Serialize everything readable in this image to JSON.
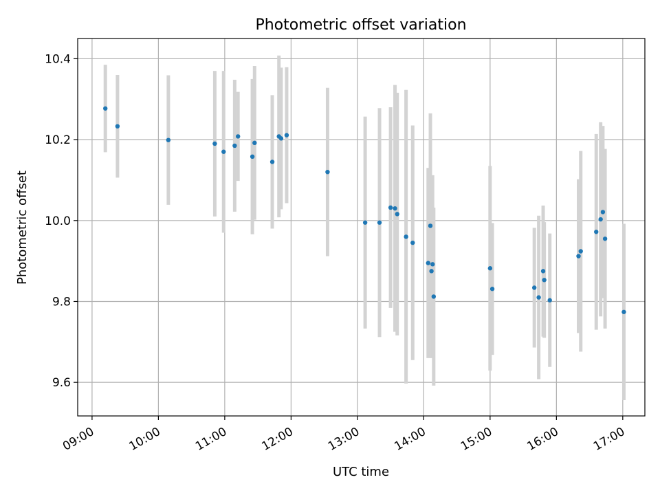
{
  "chart_data": {
    "type": "scatter",
    "title": "Photometric offset variation",
    "xlabel": "UTC time",
    "ylabel": "Photometric offset",
    "x_tick_labels": [
      "09:00",
      "10:00",
      "11:00",
      "12:00",
      "13:00",
      "14:00",
      "15:00",
      "16:00",
      "17:00"
    ],
    "y_ticks": [
      9.6,
      9.8,
      10.0,
      10.2,
      10.4
    ],
    "y_tick_labels": [
      "9.6",
      "9.8",
      "10.0",
      "10.2",
      "10.4"
    ],
    "xlim": [
      "08:47",
      "17:20"
    ],
    "ylim": [
      9.517,
      10.45
    ],
    "grid": true,
    "point_color": "#1f77b4",
    "errorbar_color": "#d3d3d3",
    "points": [
      {
        "x": "09:12",
        "y": 10.277,
        "err": 0.108
      },
      {
        "x": "09:23",
        "y": 10.233,
        "err": 0.127
      },
      {
        "x": "10:09",
        "y": 10.199,
        "err": 0.16
      },
      {
        "x": "10:51",
        "y": 10.19,
        "err": 0.18
      },
      {
        "x": "10:59",
        "y": 10.17,
        "err": 0.2
      },
      {
        "x": "11:09",
        "y": 10.185,
        "err": 0.163
      },
      {
        "x": "11:12",
        "y": 10.208,
        "err": 0.11
      },
      {
        "x": "11:25",
        "y": 10.158,
        "err": 0.192
      },
      {
        "x": "11:27",
        "y": 10.192,
        "err": 0.19
      },
      {
        "x": "11:43",
        "y": 10.145,
        "err": 0.165
      },
      {
        "x": "11:49",
        "y": 10.208,
        "err": 0.2
      },
      {
        "x": "11:51",
        "y": 10.203,
        "err": 0.175
      },
      {
        "x": "11:56",
        "y": 10.211,
        "err": 0.168
      },
      {
        "x": "12:33",
        "y": 10.12,
        "err": 0.208
      },
      {
        "x": "13:07",
        "y": 9.995,
        "err": 0.262
      },
      {
        "x": "13:20",
        "y": 9.995,
        "err": 0.283
      },
      {
        "x": "13:30",
        "y": 10.032,
        "err": 0.248
      },
      {
        "x": "13:34",
        "y": 10.03,
        "err": 0.305
      },
      {
        "x": "13:36",
        "y": 10.016,
        "err": 0.3
      },
      {
        "x": "13:44",
        "y": 9.96,
        "err": 0.363
      },
      {
        "x": "13:50",
        "y": 9.945,
        "err": 0.29
      },
      {
        "x": "14:04",
        "y": 9.895,
        "err": 0.235
      },
      {
        "x": "14:06",
        "y": 9.987,
        "err": 0.278
      },
      {
        "x": "14:07",
        "y": 9.875,
        "err": 0.215
      },
      {
        "x": "14:08",
        "y": 9.892,
        "err": 0.22
      },
      {
        "x": "14:09",
        "y": 9.812,
        "err": 0.22
      },
      {
        "x": "15:00",
        "y": 9.882,
        "err": 0.253
      },
      {
        "x": "15:02",
        "y": 9.831,
        "err": 0.163
      },
      {
        "x": "15:40",
        "y": 9.834,
        "err": 0.148
      },
      {
        "x": "15:44",
        "y": 9.81,
        "err": 0.202
      },
      {
        "x": "15:48",
        "y": 9.875,
        "err": 0.162
      },
      {
        "x": "15:49",
        "y": 9.853,
        "err": 0.143
      },
      {
        "x": "15:54",
        "y": 9.803,
        "err": 0.165
      },
      {
        "x": "16:20",
        "y": 9.912,
        "err": 0.19
      },
      {
        "x": "16:22",
        "y": 9.924,
        "err": 0.248
      },
      {
        "x": "16:36",
        "y": 9.972,
        "err": 0.242
      },
      {
        "x": "16:40",
        "y": 10.003,
        "err": 0.24
      },
      {
        "x": "16:42",
        "y": 10.021,
        "err": 0.213
      },
      {
        "x": "16:44",
        "y": 9.955,
        "err": 0.222
      },
      {
        "x": "17:01",
        "y": 9.774,
        "err": 0.218
      }
    ]
  }
}
